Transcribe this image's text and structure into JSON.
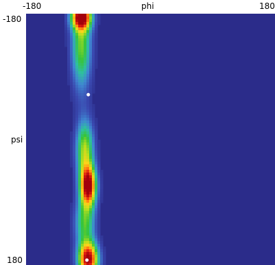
{
  "chart_data": {
    "type": "heatmap",
    "title": "",
    "xlabel": "phi",
    "ylabel": "psi",
    "xlim": [
      -180,
      180
    ],
    "ylim": [
      -180,
      180
    ],
    "x_tick_labels": [
      "-180",
      "180"
    ],
    "y_tick_labels": [
      "-180",
      "180"
    ],
    "y_axis_direction": "downward",
    "colormap": [
      "#2b2c8a",
      "#3a49b0",
      "#3f86d1",
      "#2fbfa0",
      "#38c43a",
      "#b6df1e",
      "#ffd21a",
      "#ff7a10",
      "#e01d10",
      "#a3000c"
    ],
    "background_color": "#2b2c8a",
    "peak_marker_color": "#ffffff",
    "hotspots": [
      {
        "phi": -90,
        "psi": 67,
        "peak_intensity": 1.0,
        "spread_phi": 8,
        "spread_psi": 20
      },
      {
        "phi": -95,
        "psi": 15,
        "peak_intensity": 0.55,
        "spread_phi": 9,
        "spread_psi": 30
      },
      {
        "phi": -100,
        "psi": -135,
        "peak_intensity": 0.5,
        "spread_phi": 10,
        "spread_psi": 45
      },
      {
        "phi": -100,
        "psi": -175,
        "peak_intensity": 0.9,
        "spread_phi": 10,
        "spread_psi": 12
      },
      {
        "phi": -90,
        "psi": 172,
        "peak_intensity": 1.0,
        "spread_phi": 10,
        "spread_psi": 17
      },
      {
        "phi": -95,
        "psi": 120,
        "peak_intensity": 0.45,
        "spread_phi": 10,
        "spread_psi": 25
      }
    ],
    "peak_markers": [
      {
        "phi": -90,
        "psi": -64
      },
      {
        "phi": -92,
        "psi": 173
      }
    ]
  }
}
